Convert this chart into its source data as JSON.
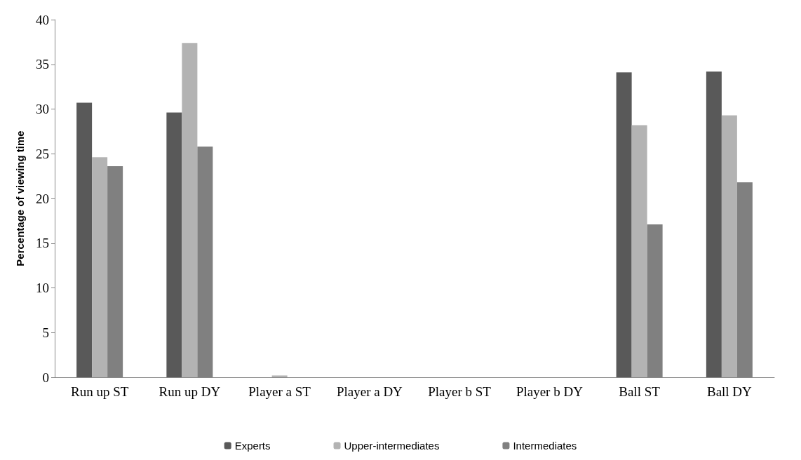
{
  "chart_data": {
    "type": "bar",
    "ylabel": "Percentage of viewing time",
    "categories": [
      "Run up ST",
      "Run up DY",
      "Player a ST",
      "Player a DY",
      "Player b ST",
      "Player b DY",
      "Ball ST",
      "Ball DY"
    ],
    "series": [
      {
        "name": "Experts",
        "color": "#595959",
        "values": [
          30.7,
          29.6,
          0,
          0,
          0,
          0,
          34.1,
          34.2
        ]
      },
      {
        "name": "Upper-intermediates",
        "color": "#b3b3b3",
        "values": [
          24.6,
          37.4,
          0.2,
          0,
          0,
          0,
          28.2,
          29.3
        ]
      },
      {
        "name": "Intermediates",
        "color": "#808080",
        "values": [
          23.6,
          25.8,
          0,
          0,
          0,
          0,
          17.1,
          21.8
        ]
      }
    ],
    "ylim": [
      0,
      40
    ],
    "yticks": [
      0,
      5,
      10,
      15,
      20,
      25,
      30,
      35,
      40
    ],
    "grid": false,
    "legend": "bottom"
  }
}
